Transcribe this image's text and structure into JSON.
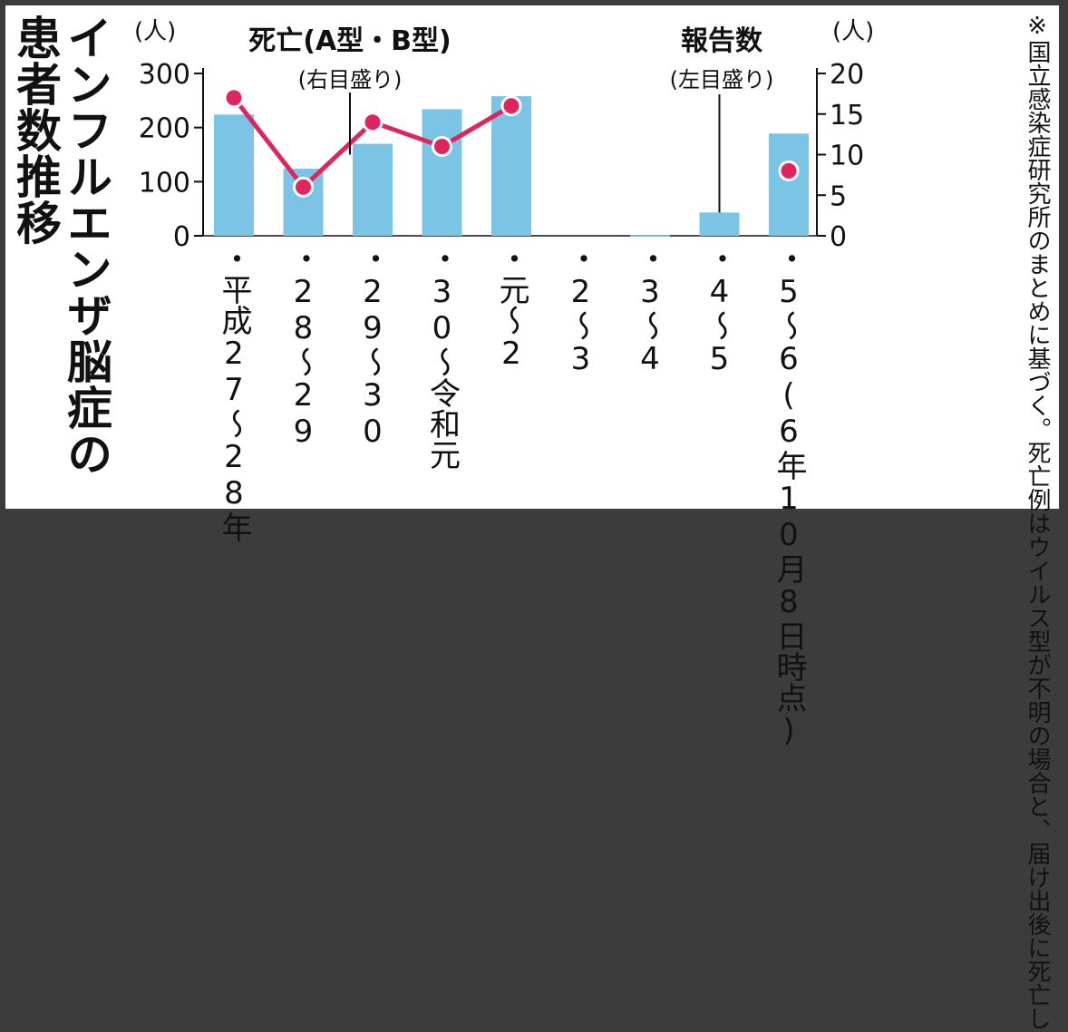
{
  "figure": {
    "title_line1": "インフルエンザ脳症の",
    "title_line2": "患者数推移",
    "note": "※国立感染症研究所のまとめに基づく。死亡例はウイルス型が不明の場合と、届け出後に死亡した人数は含めていない"
  },
  "legend": {
    "deaths_name": "死亡(A型・B型)",
    "deaths_axis": "(右目盛り)",
    "reports_name": "報告数",
    "reports_axis": "(左目盛り)"
  },
  "units": {
    "left": "(人)",
    "right": "(人)"
  },
  "colors": {
    "bar": "#7cc4e6",
    "line": "#e0245e",
    "text": "#111111",
    "background": "#ffffff",
    "frame": "#3c3c3c"
  },
  "chart_data": {
    "type": "bar",
    "categories": [
      "・平成27〜28年",
      "・28〜29",
      "・29〜30",
      "・30〜令和元",
      "・元〜2",
      "・2〜3",
      "・3〜4",
      "・4〜5",
      "・5〜6(6年10月8日時点)"
    ],
    "series": [
      {
        "name": "報告数",
        "type": "bar",
        "axis": "left",
        "values": [
          224,
          124,
          170,
          234,
          258,
          null,
          1,
          43,
          189
        ]
      },
      {
        "name": "死亡(A型・B型)",
        "type": "line",
        "axis": "right",
        "values": [
          17,
          6,
          14,
          11,
          16,
          null,
          null,
          null,
          8
        ]
      }
    ],
    "left_axis": {
      "ylim": [
        0,
        300
      ],
      "ticks": [
        "0",
        "100",
        "200",
        "300"
      ],
      "label": "(人)"
    },
    "right_axis": {
      "ylim": [
        0,
        20
      ],
      "ticks": [
        "0",
        "5",
        "10",
        "15",
        "20"
      ],
      "label": "(人)"
    },
    "grid": false,
    "legend_placement": "top"
  }
}
